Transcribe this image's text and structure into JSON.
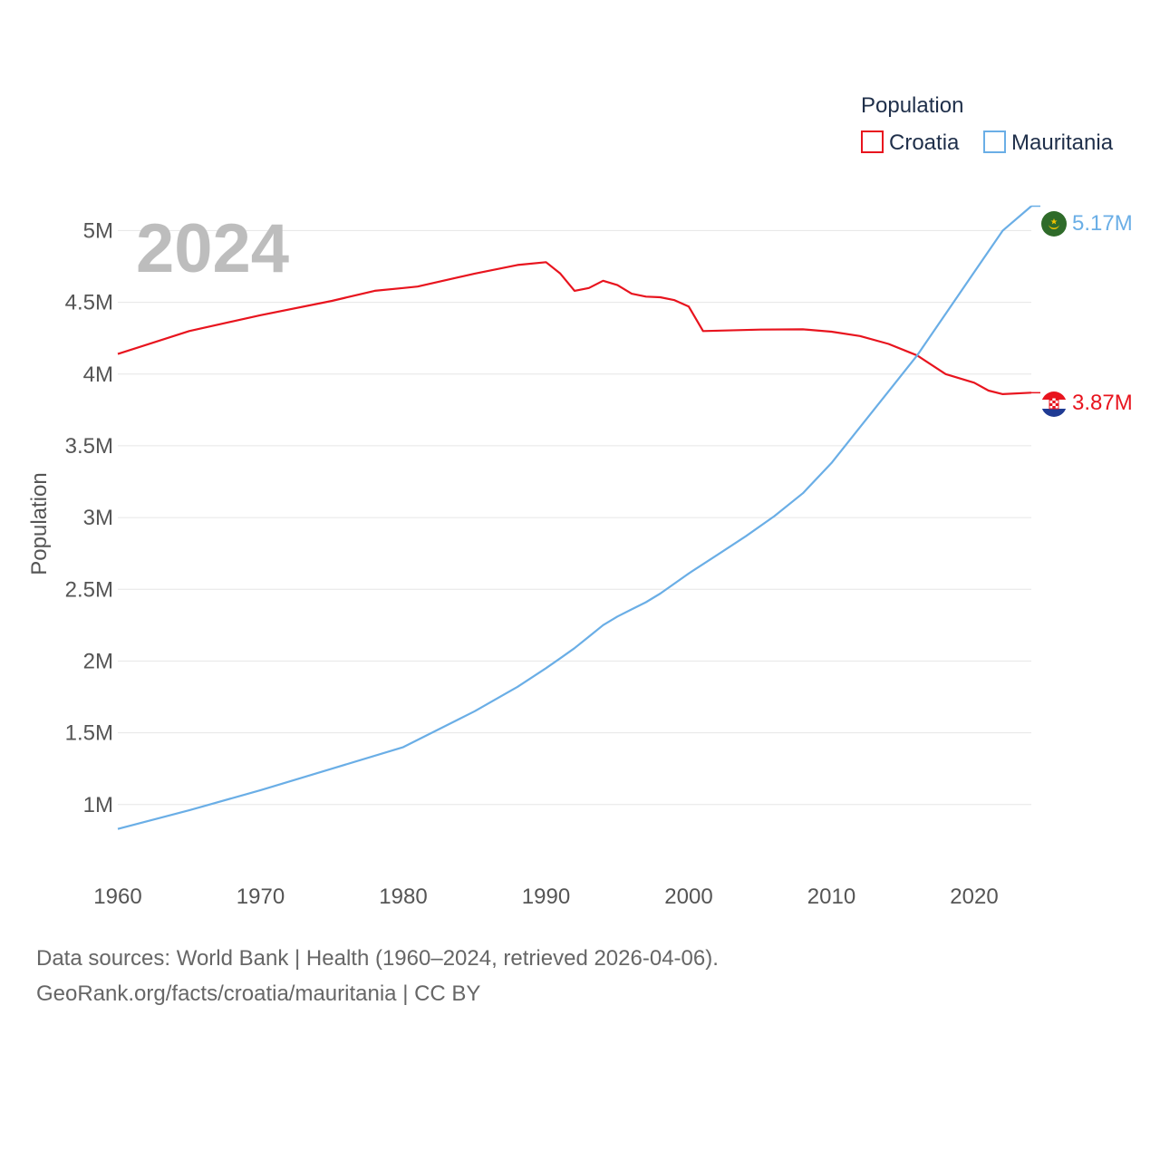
{
  "chart_data": {
    "type": "line",
    "legend_title": "Population",
    "ylabel": "Population",
    "year_label": "2024",
    "xlim": [
      1960,
      2024
    ],
    "ylim": [
      550000,
      5350000
    ],
    "x_ticks": [
      1960,
      1970,
      1980,
      1990,
      2000,
      2010,
      2020
    ],
    "x_tick_labels": [
      "1960",
      "1970",
      "1980",
      "1990",
      "2000",
      "2010",
      "2020"
    ],
    "y_ticks": [
      1000000,
      1500000,
      2000000,
      2500000,
      3000000,
      3500000,
      4000000,
      4500000,
      5000000
    ],
    "y_tick_labels": [
      "1M",
      "1.5M",
      "2M",
      "2.5M",
      "3M",
      "3.5M",
      "4M",
      "4.5M",
      "5M"
    ],
    "series": [
      {
        "name": "Croatia",
        "color": "#e8141e",
        "end_label": "3.87M",
        "flag_icon": "croatia-flag-icon",
        "points": [
          [
            1960,
            4140000
          ],
          [
            1965,
            4300000
          ],
          [
            1970,
            4410000
          ],
          [
            1975,
            4510000
          ],
          [
            1978,
            4580000
          ],
          [
            1980,
            4600000
          ],
          [
            1981,
            4610000
          ],
          [
            1985,
            4700000
          ],
          [
            1988,
            4760000
          ],
          [
            1990,
            4780000
          ],
          [
            1991,
            4700000
          ],
          [
            1992,
            4580000
          ],
          [
            1993,
            4600000
          ],
          [
            1994,
            4650000
          ],
          [
            1995,
            4620000
          ],
          [
            1996,
            4560000
          ],
          [
            1997,
            4540000
          ],
          [
            1998,
            4535000
          ],
          [
            1999,
            4515000
          ],
          [
            2000,
            4470000
          ],
          [
            2001,
            4300000
          ],
          [
            2005,
            4310000
          ],
          [
            2008,
            4312000
          ],
          [
            2010,
            4295000
          ],
          [
            2012,
            4265000
          ],
          [
            2014,
            4210000
          ],
          [
            2016,
            4130000
          ],
          [
            2018,
            4000000
          ],
          [
            2020,
            3940000
          ],
          [
            2021,
            3885000
          ],
          [
            2022,
            3860000
          ],
          [
            2024,
            3870000
          ]
        ]
      },
      {
        "name": "Mauritania",
        "color": "#6aaee6",
        "end_label": "5.17M",
        "flag_icon": "mauritania-flag-icon",
        "points": [
          [
            1960,
            830000
          ],
          [
            1965,
            960000
          ],
          [
            1970,
            1100000
          ],
          [
            1975,
            1250000
          ],
          [
            1980,
            1400000
          ],
          [
            1985,
            1650000
          ],
          [
            1988,
            1820000
          ],
          [
            1990,
            1950000
          ],
          [
            1991,
            2020000
          ],
          [
            1992,
            2090000
          ],
          [
            1993,
            2170000
          ],
          [
            1994,
            2250000
          ],
          [
            1995,
            2310000
          ],
          [
            1996,
            2360000
          ],
          [
            1997,
            2410000
          ],
          [
            1998,
            2470000
          ],
          [
            2000,
            2610000
          ],
          [
            2002,
            2740000
          ],
          [
            2004,
            2870000
          ],
          [
            2006,
            3010000
          ],
          [
            2008,
            3170000
          ],
          [
            2010,
            3380000
          ],
          [
            2012,
            3630000
          ],
          [
            2014,
            3880000
          ],
          [
            2016,
            4130000
          ],
          [
            2018,
            4420000
          ],
          [
            2020,
            4710000
          ],
          [
            2022,
            5000000
          ],
          [
            2024,
            5170000
          ]
        ]
      }
    ]
  },
  "footer": {
    "line1": "Data sources: World Bank | Health (1960–2024, retrieved 2026-04-06).",
    "line2": "GeoRank.org/facts/croatia/mauritania | CC BY"
  }
}
